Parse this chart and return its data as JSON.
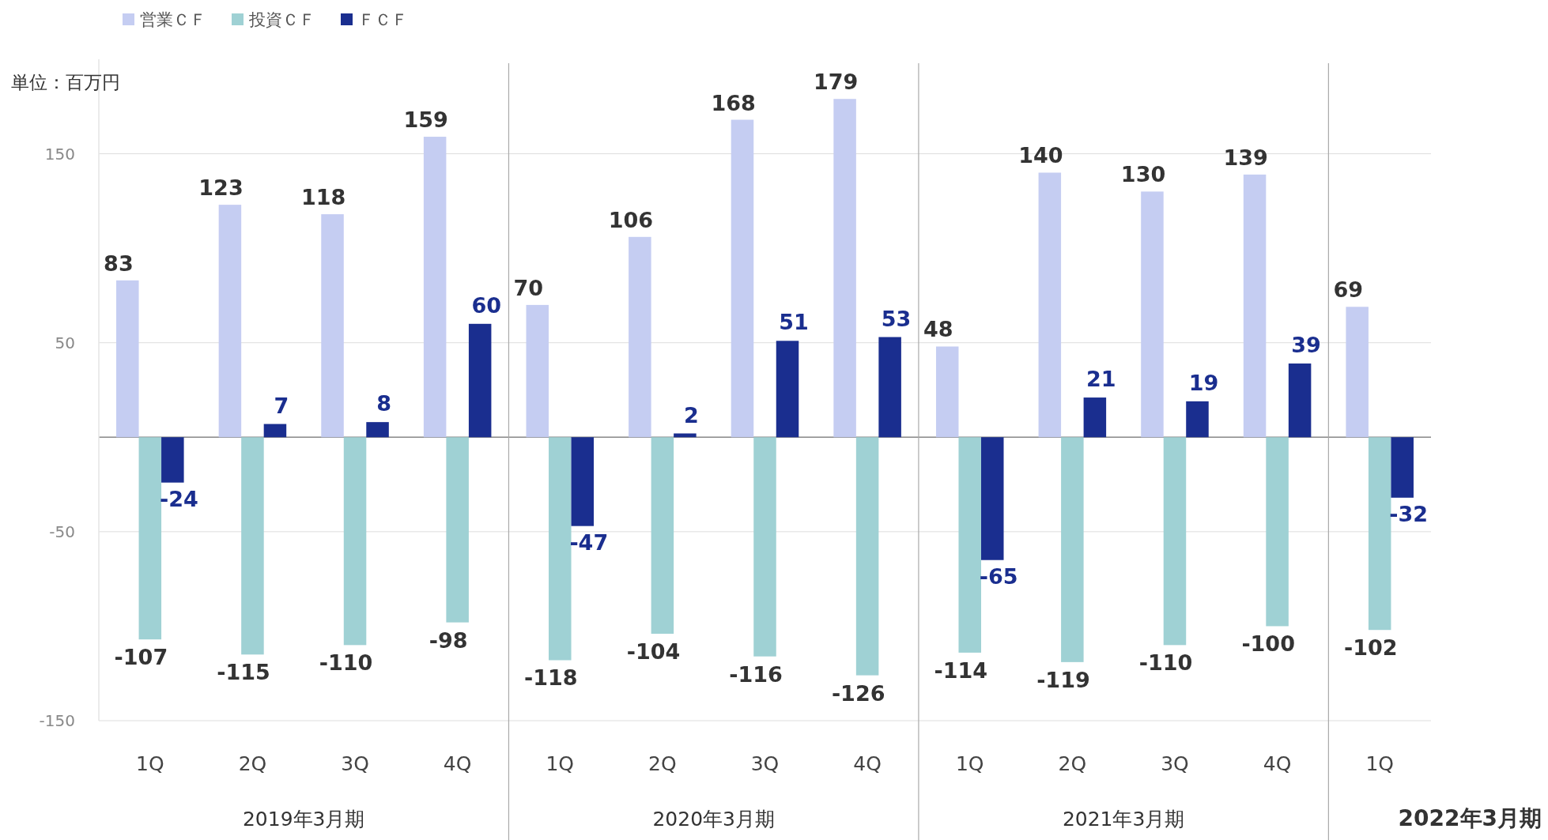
{
  "chart_data": {
    "type": "bar",
    "categories": [
      "1Q",
      "2Q",
      "3Q",
      "4Q",
      "1Q",
      "2Q",
      "3Q",
      "4Q",
      "1Q",
      "2Q",
      "3Q",
      "4Q",
      "1Q"
    ],
    "series": [
      {
        "name": "営業ＣＦ",
        "color": "#c5cdf2",
        "values": [
          83,
          123,
          118,
          159,
          70,
          106,
          168,
          179,
          48,
          140,
          130,
          139,
          69
        ]
      },
      {
        "name": "投資ＣＦ",
        "color": "#9fd1d4",
        "values": [
          -107,
          -115,
          -110,
          -98,
          -118,
          -104,
          -116,
          -126,
          -114,
          -119,
          -110,
          -100,
          -102
        ]
      },
      {
        "name": "ＦＣＦ",
        "color": "#1a2e8f",
        "values": [
          -24,
          7,
          8,
          60,
          -47,
          2,
          51,
          53,
          -65,
          21,
          19,
          39,
          -32
        ]
      }
    ],
    "ylim": [
      -150,
      200
    ],
    "yticks": [
      -150,
      -50,
      50,
      150
    ],
    "grid": "y",
    "legend": "top left",
    "data_labels": true,
    "annotations": [
      "単位：百万円",
      "2019年3月期",
      "2020年3月期",
      "2021年3月期",
      "2022年3月期"
    ]
  }
}
